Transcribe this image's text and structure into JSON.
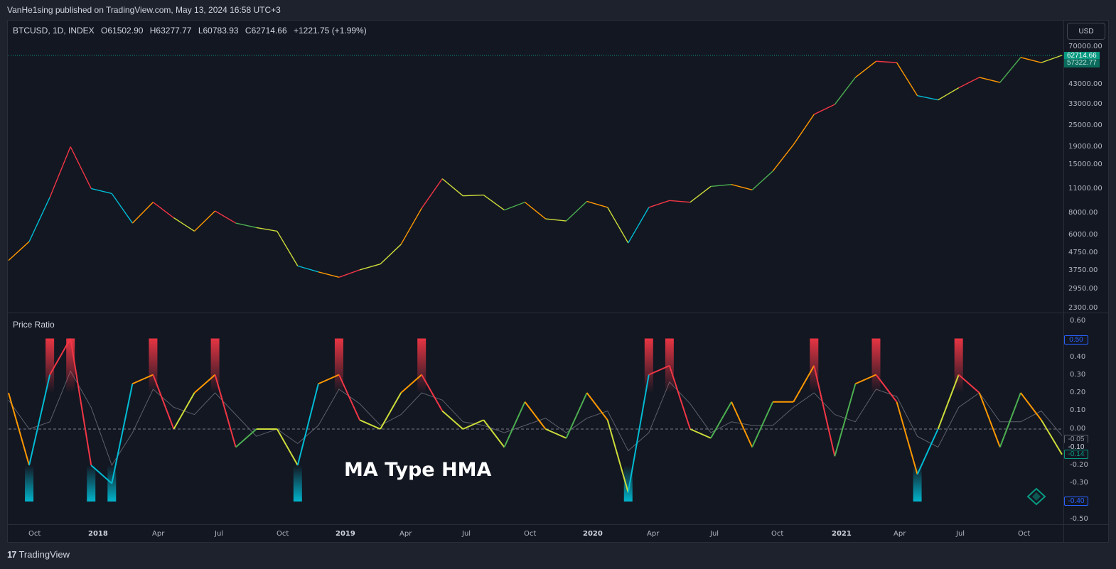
{
  "header": {
    "published": "VanHe1sing published on TradingView.com, May 13, 2024 16:58 UTC+3"
  },
  "legend": {
    "symbol": "BTCUSD, 1D, INDEX",
    "open": "O61502.90",
    "high": "H63277.77",
    "low": "L60783.93",
    "close": "C62714.66",
    "change": "+1221.75 (+1.99%)"
  },
  "currency_label": "USD",
  "indicator_title": "Price Ratio",
  "overlay_text": "MA Type HMA",
  "price_scale": [
    "70000.00",
    "43000.00",
    "33000.00",
    "25000.00",
    "19000.00",
    "15000.00",
    "11000.00",
    "8000.00",
    "6000.00",
    "4750.00",
    "3750.00",
    "2950.00",
    "2300.00"
  ],
  "price_tags": {
    "last": "62714.66",
    "ma": "57322.77"
  },
  "indicator_scale": [
    "0.60",
    "0.40",
    "0.30",
    "0.20",
    "0.10",
    "0.00",
    "-0.20",
    "-0.30",
    "-0.50"
  ],
  "indicator_tags": {
    "upper": "0.50",
    "value_a": "-0.05",
    "value_b": "-0.10",
    "value_c": "-0.14",
    "lower": "-0.40"
  },
  "time_axis": [
    {
      "label": "Oct",
      "year": false
    },
    {
      "label": "2018",
      "year": true
    },
    {
      "label": "Apr",
      "year": false
    },
    {
      "label": "Jul",
      "year": false
    },
    {
      "label": "Oct",
      "year": false
    },
    {
      "label": "2019",
      "year": true
    },
    {
      "label": "Apr",
      "year": false
    },
    {
      "label": "Jul",
      "year": false
    },
    {
      "label": "Oct",
      "year": false
    },
    {
      "label": "2020",
      "year": true
    },
    {
      "label": "Apr",
      "year": false
    },
    {
      "label": "Jul",
      "year": false
    },
    {
      "label": "Oct",
      "year": false
    },
    {
      "label": "2021",
      "year": true
    },
    {
      "label": "Apr",
      "year": false
    },
    {
      "label": "Jul",
      "year": false
    },
    {
      "label": "Oct",
      "year": false
    }
  ],
  "footer": {
    "brand": "TradingView",
    "logo": "17"
  },
  "colors": {
    "bull": "#089981",
    "bear": "#f23645",
    "cyan": "#00bcd4",
    "lime": "#8bc34a",
    "orange": "#ff9800"
  },
  "price_series": {
    "dates": [
      "2017-09",
      "2017-10",
      "2017-11",
      "2017-12",
      "2018-01",
      "2018-02",
      "2018-03",
      "2018-04",
      "2018-05",
      "2018-06",
      "2018-07",
      "2018-08",
      "2018-09",
      "2018-10",
      "2018-11",
      "2018-12",
      "2019-01",
      "2019-02",
      "2019-03",
      "2019-04",
      "2019-05",
      "2019-06",
      "2019-07",
      "2019-08",
      "2019-09",
      "2019-10",
      "2019-11",
      "2019-12",
      "2020-01",
      "2020-02",
      "2020-03",
      "2020-04",
      "2020-05",
      "2020-06",
      "2020-07",
      "2020-08",
      "2020-09",
      "2020-10",
      "2020-11",
      "2020-12",
      "2021-01",
      "2021-02",
      "2021-03",
      "2021-04",
      "2021-05",
      "2021-06",
      "2021-07",
      "2021-08",
      "2021-09",
      "2021-10",
      "2021-11",
      "2021-12"
    ],
    "close": [
      4300,
      5500,
      9800,
      19000,
      11000,
      10300,
      7000,
      9200,
      7500,
      6300,
      8200,
      7000,
      6600,
      6300,
      4000,
      3700,
      3450,
      3800,
      4100,
      5300,
      8500,
      12500,
      10000,
      10100,
      8300,
      9200,
      7400,
      7200,
      9300,
      8600,
      5400,
      8600,
      9400,
      9200,
      11300,
      11600,
      10800,
      13800,
      19500,
      29000,
      33000,
      47000,
      58000,
      57000,
      37000,
      35000,
      41000,
      47000,
      44000,
      61000,
      57000,
      62700
    ]
  },
  "ratio_series": {
    "dates": [
      "2017-09",
      "2017-10",
      "2017-11",
      "2017-12",
      "2018-01",
      "2018-02",
      "2018-03",
      "2018-04",
      "2018-05",
      "2018-06",
      "2018-07",
      "2018-08",
      "2018-09",
      "2018-10",
      "2018-11",
      "2018-12",
      "2019-01",
      "2019-02",
      "2019-03",
      "2019-04",
      "2019-05",
      "2019-06",
      "2019-07",
      "2019-08",
      "2019-09",
      "2019-10",
      "2019-11",
      "2019-12",
      "2020-01",
      "2020-02",
      "2020-03",
      "2020-04",
      "2020-05",
      "2020-06",
      "2020-07",
      "2020-08",
      "2020-09",
      "2020-10",
      "2020-11",
      "2020-12",
      "2021-01",
      "2021-02",
      "2021-03",
      "2021-04",
      "2021-05",
      "2021-06",
      "2021-07",
      "2021-08",
      "2021-09",
      "2021-10",
      "2021-11",
      "2021-12"
    ],
    "values": [
      0.2,
      -0.2,
      0.3,
      0.5,
      -0.2,
      -0.3,
      0.25,
      0.3,
      0.0,
      0.2,
      0.3,
      -0.1,
      0.0,
      0.0,
      -0.2,
      0.25,
      0.3,
      0.05,
      0.0,
      0.2,
      0.3,
      0.1,
      0.0,
      0.05,
      -0.1,
      0.15,
      0.0,
      -0.05,
      0.2,
      0.05,
      -0.35,
      0.3,
      0.35,
      0.0,
      -0.05,
      0.15,
      -0.1,
      0.15,
      0.15,
      0.35,
      -0.15,
      0.25,
      0.3,
      0.15,
      -0.25,
      0.0,
      0.3,
      0.2,
      -0.1,
      0.2,
      0.05,
      -0.14
    ]
  }
}
